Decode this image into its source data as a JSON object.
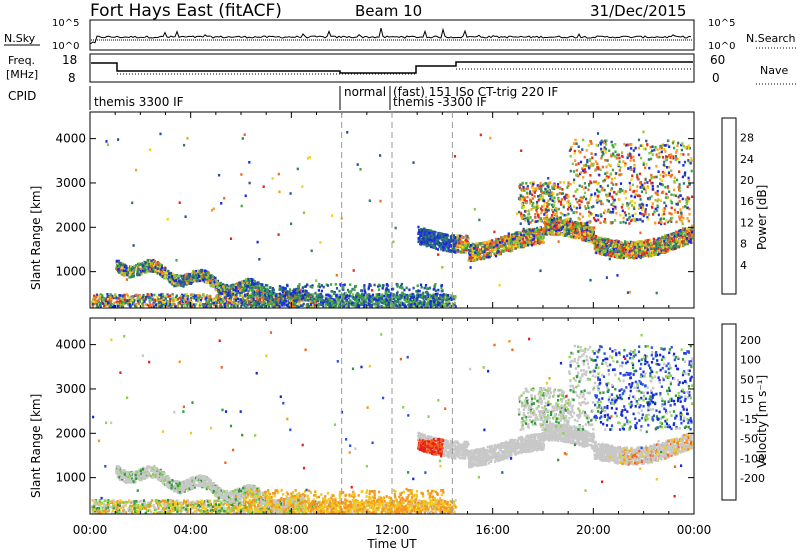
{
  "header": {
    "title": "Fort Hays East (fitACF)",
    "beam": "Beam 10",
    "date": "31/Dec/2015"
  },
  "left_labels": {
    "nsky": "N.Sky",
    "freq_line1": "Freq.",
    "freq_line2": "[MHz]",
    "cpid": "CPID"
  },
  "right_labels": {
    "nsearch": "N.Search",
    "nave": "Nave"
  },
  "noise_axis": {
    "left_ticks": [
      "10^5",
      "10^0"
    ],
    "right_ticks": [
      "10^5",
      "10^0"
    ]
  },
  "freq_axis": {
    "left_ticks": [
      "18",
      "8"
    ],
    "right_ticks": [
      "60",
      "0"
    ]
  },
  "cpid_segments": [
    {
      "label": "themis 3300 IF",
      "start_hour": 0.0
    },
    {
      "label": "normal",
      "start_hour": 10.0
    },
    {
      "label": "(fast) 151 ISo CT-trig 220 IF",
      "start_hour": 12.0
    },
    {
      "label": "themis -3300 IF",
      "start_hour": 12.0
    }
  ],
  "chart_data": [
    {
      "type": "heatmap",
      "panel": "power",
      "ylabel": "Slant Range [km]",
      "xlabel": "Time UT",
      "xlim_hours": [
        0,
        24
      ],
      "ylim_km": [
        180,
        4600
      ],
      "y_ticks": [
        "1000",
        "2000",
        "3000",
        "4000"
      ],
      "x_ticks": [
        "00:00",
        "04:00",
        "08:00",
        "12:00",
        "16:00",
        "20:00",
        "00:00"
      ],
      "dashed_time_markers_hours": [
        10.0,
        12.0,
        14.4
      ],
      "colorbar": {
        "label": "Power [dB]",
        "ticks": [
          "4",
          "8",
          "12",
          "16",
          "20",
          "24",
          "28"
        ],
        "colors": [
          "#1a28e6",
          "#2850a0",
          "#2e7d6a",
          "#3fa83f",
          "#8cc640",
          "#f2d21a",
          "#f5a01e",
          "#f26a1e",
          "#e8281e"
        ]
      },
      "scatter_bands": [
        {
          "name": "low-range near-ground band",
          "t0": 0.0,
          "t1": 14.5,
          "r0": 200,
          "r1": 500
        },
        {
          "name": "morning bands",
          "t0": 1.5,
          "t1": 8.5,
          "r0": 400,
          "r1": 1400
        },
        {
          "name": "afternoon-evening band",
          "t0": 13.0,
          "t1": 24.0,
          "r0": 1200,
          "r1": 2400
        },
        {
          "name": "evening high-range",
          "t0": 17.0,
          "t1": 23.5,
          "r0": 2200,
          "r1": 4400
        }
      ]
    },
    {
      "type": "heatmap",
      "panel": "velocity",
      "ylabel": "Slant Range [km]",
      "xlabel": "Time UT",
      "xlim_hours": [
        0,
        24
      ],
      "ylim_km": [
        180,
        4600
      ],
      "y_ticks": [
        "1000",
        "2000",
        "3000",
        "4000"
      ],
      "x_ticks": [
        "00:00",
        "04:00",
        "08:00",
        "12:00",
        "16:00",
        "20:00",
        "00:00"
      ],
      "colorbar": {
        "label": "Velocity [m s⁻¹]",
        "ticks": [
          "200",
          "100",
          "50",
          "15",
          "-15",
          "-50",
          "-100",
          "-200"
        ],
        "colors": [
          "#1428d2",
          "#2850e6",
          "#2e9a3a",
          "#8cd24a",
          "#c8c8c8",
          "#f0c81e",
          "#f5961e",
          "#f0641e",
          "#e61e1e"
        ]
      }
    }
  ],
  "colors": {
    "ground_scatter": "#c8c8c8",
    "frame": "#000000"
  }
}
